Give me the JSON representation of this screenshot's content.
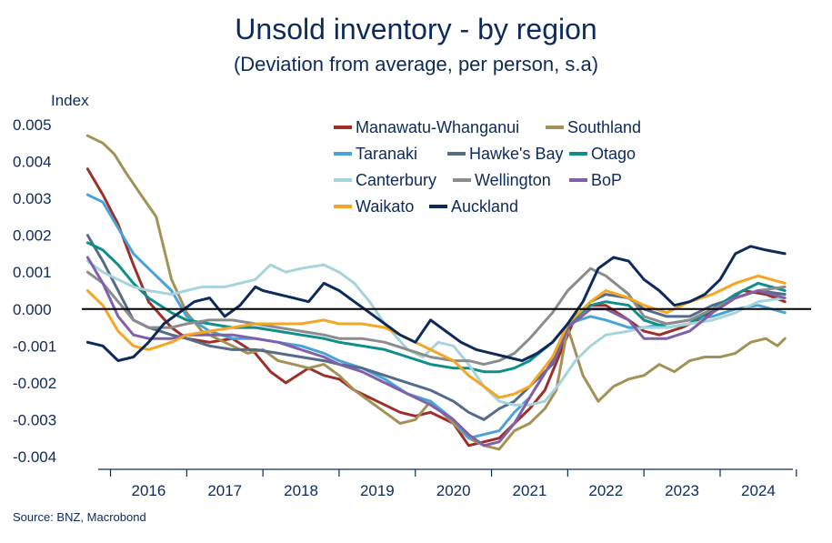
{
  "chart_data": {
    "type": "line",
    "title": "Unsold inventory - by region",
    "subtitle": "(Deviation from average, per person, s.a)",
    "ylabel": "Index",
    "source": "Source: BNZ, Macrobond",
    "ylim": [
      -0.0042,
      0.0051
    ],
    "xlim": [
      2015.6,
      2025.05
    ],
    "yticks": [
      "0.005",
      "0.004",
      "0.003",
      "0.002",
      "0.001",
      "0.000",
      "-0.001",
      "-0.002",
      "-0.003",
      "-0.004"
    ],
    "ytick_values": [
      0.005,
      0.004,
      0.003,
      0.002,
      0.001,
      0.0,
      -0.001,
      -0.002,
      -0.003,
      -0.004
    ],
    "xticks": [
      "2016",
      "2017",
      "2018",
      "2019",
      "2020",
      "2021",
      "2022",
      "2023",
      "2024"
    ],
    "grid": false,
    "legend": "top-center",
    "series": [
      {
        "name": "Manawatu-Whanganui",
        "color": "#9b2f2a",
        "x": [
          2015.7,
          2015.9,
          2016.1,
          2016.3,
          2016.5,
          2016.8,
          2017.0,
          2017.3,
          2017.6,
          2017.9,
          2018.1,
          2018.3,
          2018.6,
          2018.8,
          2019.0,
          2019.2,
          2019.5,
          2019.8,
          2020.0,
          2020.2,
          2020.5,
          2020.7,
          2020.9,
          2021.1,
          2021.3,
          2021.5,
          2021.7,
          2021.9,
          2022.1,
          2022.3,
          2022.5,
          2022.8,
          2023.0,
          2023.2,
          2023.5,
          2023.8,
          2024.0,
          2024.3,
          2024.6,
          2024.85
        ],
        "values": [
          0.0038,
          0.0031,
          0.0023,
          0.0012,
          0.0002,
          -0.0005,
          -0.0008,
          -0.0009,
          -0.0008,
          -0.0012,
          -0.0017,
          -0.002,
          -0.0016,
          -0.0018,
          -0.0019,
          -0.0022,
          -0.0025,
          -0.0028,
          -0.0029,
          -0.0028,
          -0.0031,
          -0.0037,
          -0.0036,
          -0.0035,
          -0.0031,
          -0.0027,
          -0.0022,
          -0.0012,
          -0.0002,
          0.0001,
          0.0001,
          -0.0003,
          -0.0006,
          -0.0007,
          -0.0005,
          -0.0002,
          0.0001,
          0.0005,
          0.0004,
          0.0002
        ]
      },
      {
        "name": "Southland",
        "color": "#a39256",
        "x": [
          2015.7,
          2015.9,
          2016.05,
          2016.2,
          2016.4,
          2016.6,
          2016.8,
          2017.0,
          2017.2,
          2017.5,
          2017.8,
          2018.0,
          2018.2,
          2018.4,
          2018.6,
          2018.8,
          2019.0,
          2019.2,
          2019.4,
          2019.6,
          2019.8,
          2020.0,
          2020.2,
          2020.5,
          2020.7,
          2020.9,
          2021.1,
          2021.3,
          2021.5,
          2021.7,
          2021.85,
          2022.0,
          2022.2,
          2022.4,
          2022.6,
          2022.8,
          2023.0,
          2023.2,
          2023.4,
          2023.6,
          2023.8,
          2024.0,
          2024.2,
          2024.4,
          2024.6,
          2024.75,
          2024.85
        ],
        "values": [
          0.0047,
          0.0045,
          0.0042,
          0.0037,
          0.0031,
          0.0025,
          0.0008,
          -0.0001,
          -0.0006,
          -0.0009,
          -0.0012,
          -0.0011,
          -0.0014,
          -0.0015,
          -0.0016,
          -0.0015,
          -0.0018,
          -0.0022,
          -0.0025,
          -0.0028,
          -0.0031,
          -0.003,
          -0.0025,
          -0.0031,
          -0.0035,
          -0.0037,
          -0.0038,
          -0.0033,
          -0.0031,
          -0.0027,
          -0.0022,
          -0.0005,
          -0.0018,
          -0.0025,
          -0.0021,
          -0.0019,
          -0.0018,
          -0.0015,
          -0.0017,
          -0.0014,
          -0.0013,
          -0.0013,
          -0.0012,
          -0.0009,
          -0.0008,
          -0.001,
          -0.0008
        ]
      },
      {
        "name": "Taranaki",
        "color": "#4aa3d8",
        "x": [
          2015.7,
          2015.9,
          2016.1,
          2016.3,
          2016.5,
          2016.8,
          2017.0,
          2017.3,
          2017.6,
          2017.9,
          2018.2,
          2018.5,
          2018.8,
          2019.0,
          2019.3,
          2019.6,
          2019.9,
          2020.2,
          2020.5,
          2020.7,
          2020.9,
          2021.1,
          2021.3,
          2021.5,
          2021.8,
          2022.0,
          2022.3,
          2022.5,
          2022.8,
          2023.0,
          2023.3,
          2023.6,
          2023.9,
          2024.2,
          2024.5,
          2024.85
        ],
        "values": [
          0.0031,
          0.0029,
          0.0022,
          0.0015,
          0.0011,
          0.0005,
          -0.0002,
          -0.0006,
          -0.0008,
          -0.0008,
          -0.0009,
          -0.001,
          -0.0012,
          -0.0014,
          -0.0016,
          -0.0019,
          -0.0023,
          -0.0025,
          -0.003,
          -0.0035,
          -0.0034,
          -0.0033,
          -0.0028,
          -0.0024,
          -0.0014,
          -0.0004,
          -0.0002,
          -0.0003,
          -0.0005,
          -0.0005,
          -0.0004,
          -0.0003,
          -0.0002,
          0.0,
          0.0001,
          -0.0001
        ]
      },
      {
        "name": "Hawke's Bay",
        "color": "#556b8a",
        "x": [
          2015.7,
          2015.9,
          2016.1,
          2016.3,
          2016.5,
          2016.8,
          2017.0,
          2017.3,
          2017.6,
          2017.9,
          2018.2,
          2018.5,
          2018.8,
          2019.0,
          2019.3,
          2019.6,
          2019.9,
          2020.2,
          2020.5,
          2020.7,
          2020.9,
          2021.1,
          2021.3,
          2021.5,
          2021.8,
          2022.0,
          2022.3,
          2022.5,
          2022.8,
          2023.0,
          2023.3,
          2023.6,
          2023.9,
          2024.2,
          2024.5,
          2024.85
        ],
        "values": [
          0.002,
          0.0013,
          0.0005,
          -0.0003,
          -0.0005,
          -0.0007,
          -0.0008,
          -0.001,
          -0.0011,
          -0.0011,
          -0.0012,
          -0.0013,
          -0.0014,
          -0.0015,
          -0.0016,
          -0.0018,
          -0.002,
          -0.0022,
          -0.0025,
          -0.0028,
          -0.003,
          -0.0027,
          -0.0025,
          -0.0021,
          -0.0015,
          -0.0005,
          0.0002,
          0.0004,
          0.0003,
          0.0,
          -0.0002,
          -0.0002,
          0.0001,
          0.0003,
          0.0005,
          0.0004
        ]
      },
      {
        "name": "Otago",
        "color": "#0e8f8c",
        "x": [
          2015.7,
          2015.9,
          2016.1,
          2016.3,
          2016.5,
          2016.8,
          2017.0,
          2017.3,
          2017.6,
          2017.9,
          2018.2,
          2018.5,
          2018.8,
          2019.0,
          2019.3,
          2019.6,
          2019.9,
          2020.2,
          2020.5,
          2020.7,
          2020.9,
          2021.1,
          2021.3,
          2021.5,
          2021.8,
          2022.0,
          2022.3,
          2022.5,
          2022.8,
          2023.0,
          2023.3,
          2023.6,
          2023.9,
          2024.2,
          2024.5,
          2024.85
        ],
        "values": [
          0.0018,
          0.0016,
          0.0012,
          0.0007,
          0.0003,
          -0.0001,
          -0.0003,
          -0.0004,
          -0.0005,
          -0.0005,
          -0.0006,
          -0.0007,
          -0.0008,
          -0.0009,
          -0.001,
          -0.0011,
          -0.0013,
          -0.0015,
          -0.0016,
          -0.0016,
          -0.0017,
          -0.0017,
          -0.0016,
          -0.0014,
          -0.0009,
          -0.0004,
          0.0001,
          0.0002,
          0.0001,
          -0.0003,
          -0.0005,
          -0.0004,
          0.0,
          0.0004,
          0.0007,
          0.0005
        ]
      },
      {
        "name": "Canterbury",
        "color": "#a7d3da",
        "x": [
          2015.7,
          2015.9,
          2016.1,
          2016.3,
          2016.5,
          2016.8,
          2017.0,
          2017.2,
          2017.5,
          2017.7,
          2017.9,
          2018.1,
          2018.3,
          2018.5,
          2018.8,
          2019.0,
          2019.2,
          2019.4,
          2019.6,
          2019.9,
          2020.1,
          2020.3,
          2020.5,
          2020.7,
          2020.9,
          2021.1,
          2021.3,
          2021.5,
          2021.7,
          2021.9,
          2022.1,
          2022.3,
          2022.5,
          2022.8,
          2023.0,
          2023.3,
          2023.6,
          2023.9,
          2024.2,
          2024.5,
          2024.85
        ],
        "values": [
          0.0013,
          0.001,
          0.0008,
          0.0006,
          0.0005,
          0.0004,
          0.0005,
          0.0006,
          0.0006,
          0.0007,
          0.0008,
          0.0012,
          0.001,
          0.0011,
          0.0012,
          0.001,
          0.0007,
          0.0002,
          -0.0004,
          -0.0011,
          -0.0013,
          -0.0009,
          -0.001,
          -0.0015,
          -0.0021,
          -0.0025,
          -0.0026,
          -0.0026,
          -0.0025,
          -0.002,
          -0.0014,
          -0.001,
          -0.0007,
          -0.0006,
          -0.0005,
          -0.0005,
          -0.0004,
          -0.0003,
          -0.0001,
          0.0002,
          0.0003
        ]
      },
      {
        "name": "Wellington",
        "color": "#8c8c8c",
        "x": [
          2015.7,
          2015.9,
          2016.1,
          2016.3,
          2016.5,
          2016.8,
          2017.0,
          2017.3,
          2017.6,
          2017.9,
          2018.2,
          2018.5,
          2018.8,
          2019.0,
          2019.3,
          2019.6,
          2019.9,
          2020.2,
          2020.5,
          2020.7,
          2020.9,
          2021.1,
          2021.3,
          2021.5,
          2021.8,
          2022.0,
          2022.3,
          2022.5,
          2022.8,
          2023.0,
          2023.3,
          2023.6,
          2023.9,
          2024.2,
          2024.5,
          2024.85
        ],
        "values": [
          0.001,
          0.0007,
          0.0002,
          -0.0003,
          -0.0005,
          -0.0005,
          -0.0004,
          -0.0003,
          -0.0003,
          -0.0004,
          -0.0005,
          -0.0006,
          -0.0007,
          -0.0008,
          -0.0008,
          -0.0009,
          -0.0011,
          -0.0013,
          -0.0014,
          -0.0014,
          -0.0015,
          -0.0014,
          -0.0012,
          -0.0008,
          -0.0001,
          0.0005,
          0.0011,
          0.0009,
          0.0004,
          -0.0002,
          -0.0004,
          -0.0003,
          0.0,
          0.0003,
          0.0005,
          0.0006
        ]
      },
      {
        "name": "BoP",
        "color": "#8060aa",
        "x": [
          2015.7,
          2015.9,
          2016.1,
          2016.3,
          2016.5,
          2016.8,
          2017.0,
          2017.3,
          2017.6,
          2017.9,
          2018.2,
          2018.5,
          2018.8,
          2019.0,
          2019.3,
          2019.6,
          2019.9,
          2020.2,
          2020.5,
          2020.7,
          2020.9,
          2021.1,
          2021.3,
          2021.5,
          2021.8,
          2022.0,
          2022.3,
          2022.5,
          2022.8,
          2023.0,
          2023.3,
          2023.6,
          2023.9,
          2024.2,
          2024.5,
          2024.85
        ],
        "values": [
          0.0014,
          0.0007,
          -0.0002,
          -0.0007,
          -0.0008,
          -0.0008,
          -0.0007,
          -0.0007,
          -0.0007,
          -0.0008,
          -0.0009,
          -0.0011,
          -0.0013,
          -0.0015,
          -0.0017,
          -0.002,
          -0.0023,
          -0.0026,
          -0.003,
          -0.0034,
          -0.0037,
          -0.0036,
          -0.0031,
          -0.0024,
          -0.0014,
          -0.0005,
          0.0,
          0.0,
          -0.0003,
          -0.0008,
          -0.0008,
          -0.0006,
          -0.0001,
          0.0003,
          0.0005,
          0.0003
        ]
      },
      {
        "name": "Waikato",
        "color": "#f5a623",
        "x": [
          2015.7,
          2015.9,
          2016.1,
          2016.3,
          2016.5,
          2016.8,
          2017.0,
          2017.3,
          2017.6,
          2017.9,
          2018.2,
          2018.5,
          2018.8,
          2019.0,
          2019.3,
          2019.6,
          2019.9,
          2020.2,
          2020.5,
          2020.7,
          2020.9,
          2021.1,
          2021.3,
          2021.5,
          2021.8,
          2022.0,
          2022.3,
          2022.5,
          2022.8,
          2023.0,
          2023.3,
          2023.6,
          2023.9,
          2024.2,
          2024.5,
          2024.85
        ],
        "values": [
          0.0005,
          0.0001,
          -0.0006,
          -0.001,
          -0.0011,
          -0.0009,
          -0.0007,
          -0.0006,
          -0.0005,
          -0.0004,
          -0.0004,
          -0.0004,
          -0.0003,
          -0.0004,
          -0.0004,
          -0.0005,
          -0.0008,
          -0.0011,
          -0.0014,
          -0.0018,
          -0.0021,
          -0.0024,
          -0.0023,
          -0.0021,
          -0.0013,
          -0.0004,
          0.0002,
          0.0005,
          0.0003,
          0.0001,
          -0.0001,
          0.0002,
          0.0004,
          0.0007,
          0.0009,
          0.0007
        ]
      },
      {
        "name": "Auckland",
        "color": "#0c2a5b",
        "x": [
          2015.7,
          2015.9,
          2016.1,
          2016.3,
          2016.5,
          2016.7,
          2016.9,
          2017.1,
          2017.3,
          2017.5,
          2017.7,
          2017.9,
          2018.0,
          2018.2,
          2018.4,
          2018.6,
          2018.8,
          2019.0,
          2019.2,
          2019.4,
          2019.6,
          2019.8,
          2020.0,
          2020.2,
          2020.4,
          2020.6,
          2020.8,
          2021.0,
          2021.2,
          2021.4,
          2021.6,
          2021.8,
          2022.0,
          2022.2,
          2022.4,
          2022.6,
          2022.8,
          2023.0,
          2023.2,
          2023.4,
          2023.6,
          2023.8,
          2024.0,
          2024.2,
          2024.4,
          2024.6,
          2024.85
        ],
        "values": [
          -0.0009,
          -0.001,
          -0.0014,
          -0.0013,
          -0.0009,
          -0.0004,
          -0.0001,
          0.0002,
          0.0003,
          -0.0002,
          0.0001,
          0.0006,
          0.0005,
          0.0004,
          0.0003,
          0.0002,
          0.0007,
          0.0005,
          0.0002,
          -0.0001,
          -0.0004,
          -0.0007,
          -0.0009,
          -0.0003,
          -0.0006,
          -0.0009,
          -0.0011,
          -0.0012,
          -0.0013,
          -0.0014,
          -0.0012,
          -0.0009,
          -0.0004,
          0.0002,
          0.0011,
          0.0014,
          0.0013,
          0.0008,
          0.0005,
          0.0001,
          0.0002,
          0.0004,
          0.0008,
          0.0015,
          0.0017,
          0.0016,
          0.0015
        ]
      }
    ]
  }
}
